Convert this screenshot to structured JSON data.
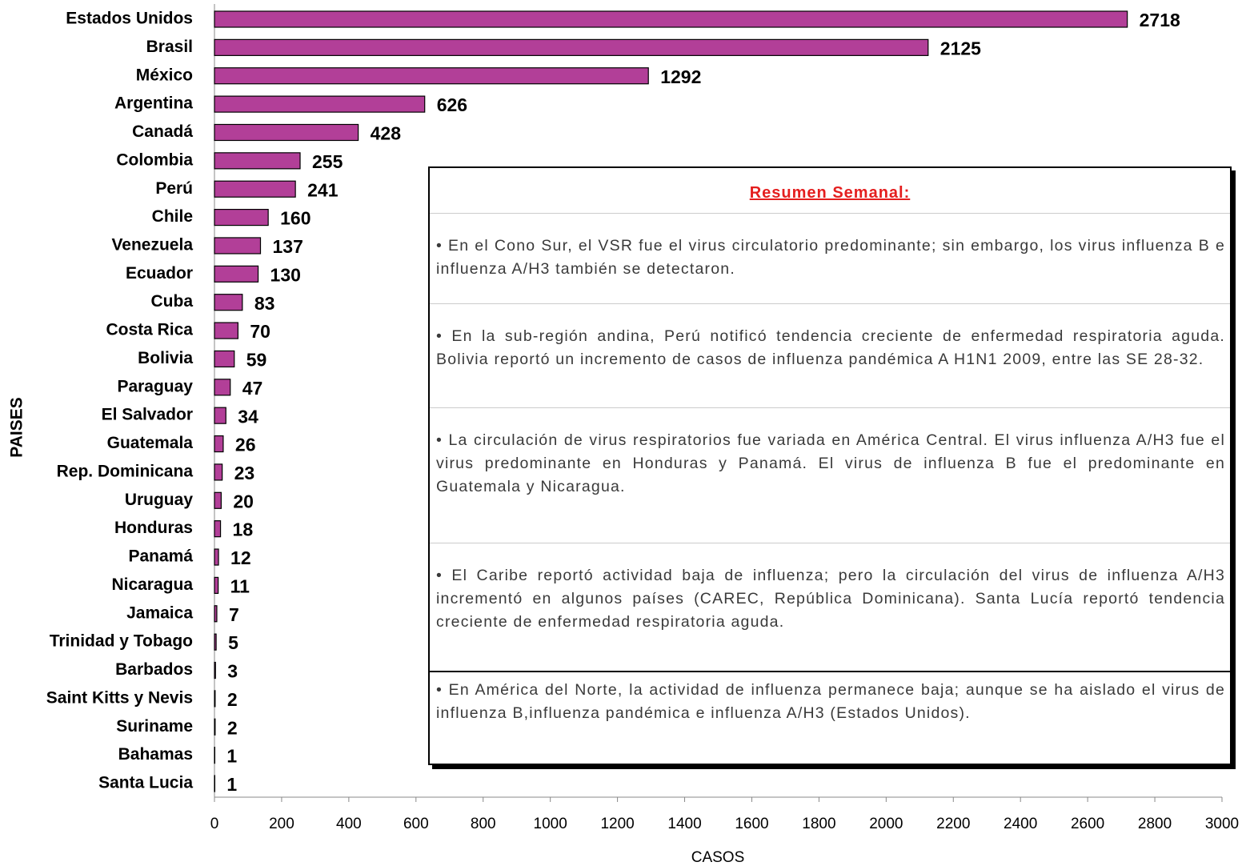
{
  "chart_data": {
    "type": "bar",
    "orientation": "horizontal",
    "categories": [
      "Estados Unidos",
      "Brasil",
      "México",
      "Argentina",
      "Canadá",
      "Colombia",
      "Perú",
      "Chile",
      "Venezuela",
      "Ecuador",
      "Cuba",
      "Costa Rica",
      "Bolivia",
      "Paraguay",
      "El Salvador",
      "Guatemala",
      "Rep. Dominicana",
      "Uruguay",
      "Honduras",
      "Panamá",
      "Nicaragua",
      "Jamaica",
      "Trinidad y Tobago",
      "Barbados",
      "Saint Kitts y Nevis",
      "Suriname",
      "Bahamas",
      "Santa Lucia"
    ],
    "values": [
      2718,
      2125,
      1292,
      626,
      428,
      255,
      241,
      160,
      137,
      130,
      83,
      70,
      59,
      47,
      34,
      26,
      23,
      20,
      18,
      12,
      11,
      7,
      5,
      3,
      2,
      2,
      1,
      1
    ],
    "color": "#b23f98",
    "xlim": [
      0,
      3000
    ],
    "xticks": [
      0,
      200,
      400,
      600,
      800,
      1000,
      1200,
      1400,
      1600,
      1800,
      2000,
      2200,
      2400,
      2600,
      2800,
      3000
    ],
    "x_label": "CASOS",
    "y_label": "PAISES",
    "annotation": {
      "title": "Resumen Semanal:",
      "paragraphs": [
        "• En el Cono Sur, el VSR fue el virus circulatorio predominante; sin embargo, los virus influenza B e influenza A/H3 también se detectaron.",
        "• En la sub-región andina, Perú notificó tendencia creciente de enfermedad respiratoria aguda. Bolivia reportó un incremento de casos de influenza pandémica A H1N1 2009, entre las SE 28-32.",
        "• La circulación de virus respiratorios fue variada en América Central. El virus influenza A/H3 fue el virus predominante en Honduras y Panamá. El virus de influenza B fue el predominante en Guatemala y Nicaragua.",
        "• El Caribe reportó actividad baja de influenza; pero la circulación del virus de influenza A/H3 incrementó en algunos países (CAREC, República Dominicana). Santa Lucía reportó tendencia creciente de enfermedad respiratoria aguda.",
        "• En América del Norte, la actividad de influenza permanece baja; aunque se ha aislado el virus de influenza B,influenza pandémica e influenza A/H3 (Estados Unidos)."
      ]
    }
  }
}
